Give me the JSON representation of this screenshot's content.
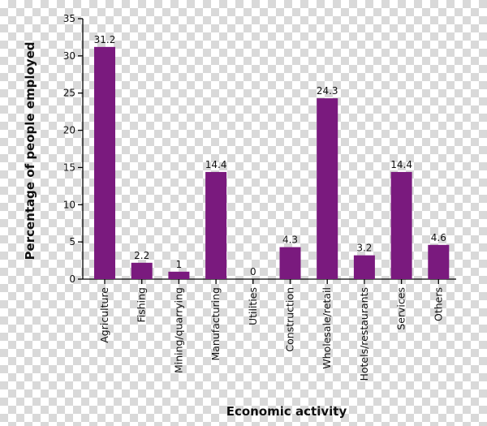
{
  "chart_data": {
    "type": "bar",
    "categories": [
      "Agriculture",
      "Fishing",
      "Mining/quarrying",
      "Manufacturing",
      "Utilities",
      "Construction",
      "Wholesale/retail",
      "Hotels/restaurants",
      "Services",
      "Others"
    ],
    "values": [
      31.2,
      2.2,
      1,
      14.4,
      0,
      4.3,
      24.3,
      3.2,
      14.4,
      4.6
    ],
    "value_labels": [
      "31.2",
      "2.2",
      "1",
      "14.4",
      "0",
      "4.3",
      "24.3",
      "3.2",
      "14.4",
      "4.6"
    ],
    "ylim": [
      0,
      35
    ],
    "yticks": [
      0,
      5,
      10,
      15,
      20,
      25,
      30,
      35
    ],
    "xlabel": "Economic activity",
    "ylabel": "Percentage of people employed",
    "grid": false,
    "legend": "none",
    "bar_color": "#7a1a7e",
    "axis_color": "#000000"
  }
}
